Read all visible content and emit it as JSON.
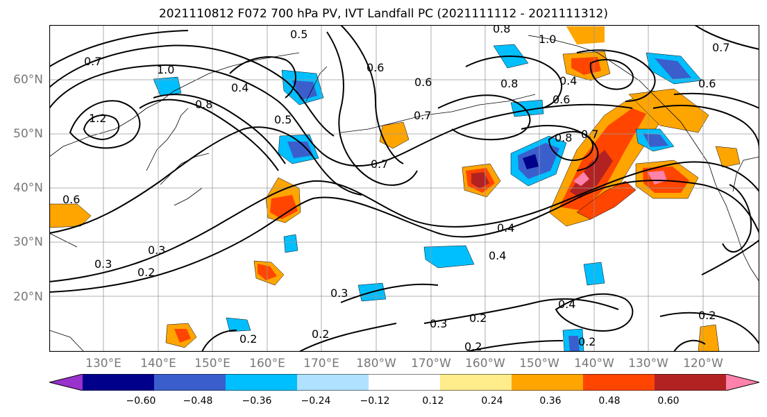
{
  "title": "2021110812 F072 700 hPa PV, IVT Landfall PC (2021111112 - 2021111312)",
  "lat_labels": [
    "60°N",
    "50°N",
    "40°N",
    "30°N",
    "20°N"
  ],
  "lon_labels": [
    "130°E",
    "140°E",
    "150°E",
    "160°E",
    "170°E",
    "180°W",
    "170°W",
    "160°W",
    "150°W",
    "140°W",
    "130°W",
    "120°W"
  ],
  "colorbar": {
    "ticks": [
      "−0.60",
      "−0.48",
      "−0.36",
      "−0.24",
      "−0.12",
      "0.12",
      "0.24",
      "0.36",
      "0.48",
      "0.60"
    ],
    "colors": [
      "#9932cc",
      "#00008b",
      "#3a5fcd",
      "#00bfff",
      "#b0e2ff",
      "#ffffff",
      "#ffec8b",
      "#ffa500",
      "#ff4500",
      "#b22222",
      "#ff82ab"
    ]
  },
  "contour_labels": [
    "0.5",
    "0.8",
    "1.0",
    "0.7",
    "0.7",
    "1.0",
    "1.2",
    "0.4",
    "0.8",
    "0.6",
    "0.5",
    "0.6",
    "0.8",
    "0.4",
    "0.7",
    "0.6",
    "0.8",
    "0.7",
    "0.6",
    "0.6",
    "0.4",
    "0.3",
    "0.2",
    "0.3",
    "0.2",
    "0.3",
    "0.2",
    "0.4",
    "0.3",
    "0.2",
    "0.2",
    "0.2",
    "0.4",
    "0.2",
    "0.7"
  ]
}
